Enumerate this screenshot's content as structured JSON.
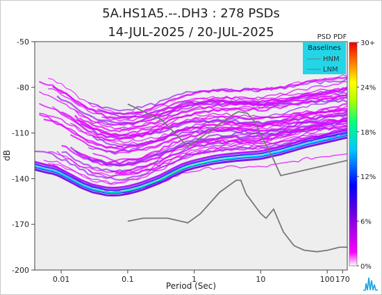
{
  "title": "5A.HS1A5.--.DH3 : 278 PSDs",
  "subtitle": "14-JUL-2025 / 20-JUL-2025",
  "chart_data": {
    "type": "heatmap",
    "title": "5A.HS1A5.--.DH3 : 278 PSDs",
    "subtitle": "14-JUL-2025 / 20-JUL-2025",
    "xlabel": "Period (Sec)",
    "ylabel": "dB",
    "x_scale": "log",
    "xlim": [
      0.004,
      200
    ],
    "ylim": [
      -200,
      -50
    ],
    "x_ticks": [
      0.01,
      0.1,
      1,
      10,
      100,
      170
    ],
    "x_tick_labels": [
      "0.01",
      "0.1",
      "1",
      "10",
      "100",
      "170"
    ],
    "y_ticks": [
      -50,
      -80,
      -110,
      -140,
      -170,
      -200
    ],
    "y_tick_labels": [
      "-50",
      "-80",
      "-110",
      "-140",
      "-170",
      "-200"
    ],
    "colorbar": {
      "label": "PSD PDF",
      "ticks": [
        "30+",
        "24%",
        "18%",
        "12%",
        "6%",
        "0%"
      ],
      "range": [
        0,
        30
      ]
    },
    "legend": {
      "title": "Baselines",
      "position": "top-right",
      "entries": [
        "HNM",
        "LNM"
      ]
    },
    "background_color": "#eeeeee",
    "noise_model_color": "#777777",
    "mode_curve": {
      "x": [
        0.004,
        0.006,
        0.008,
        0.01,
        0.015,
        0.02,
        0.03,
        0.05,
        0.07,
        0.1,
        0.15,
        0.2,
        0.3,
        0.5,
        0.7,
        1,
        2,
        3,
        5,
        10,
        20,
        50,
        100,
        200
      ],
      "y": [
        -132,
        -134,
        -135,
        -137,
        -141,
        -144,
        -147,
        -149,
        -149,
        -148,
        -146,
        -144,
        -141,
        -136,
        -133,
        -131,
        -128,
        -127,
        -126,
        -125,
        -122,
        -117,
        -114,
        -111
      ]
    },
    "high_noise_model": {
      "x": [
        0.1,
        0.22,
        0.32,
        0.8,
        3.8,
        4.6,
        6.3,
        7.9,
        15.4,
        20,
        200
      ],
      "y": [
        -91,
        -98,
        -101,
        -119,
        -98,
        -96,
        -97,
        -102,
        -127,
        -138,
        -128
      ]
    },
    "low_noise_model": {
      "x": [
        0.1,
        0.17,
        0.4,
        0.8,
        1.24,
        2.4,
        4.3,
        5,
        6,
        10,
        12,
        15.6,
        21.9,
        31.6,
        45,
        70,
        101,
        154,
        200
      ],
      "y": [
        -168,
        -166,
        -166,
        -169,
        -163,
        -149,
        -141,
        -141,
        -150,
        -163,
        -166,
        -160,
        -175,
        -184,
        -187,
        -188,
        -187,
        -185,
        -185
      ]
    }
  },
  "watermark": "seismic-logo"
}
